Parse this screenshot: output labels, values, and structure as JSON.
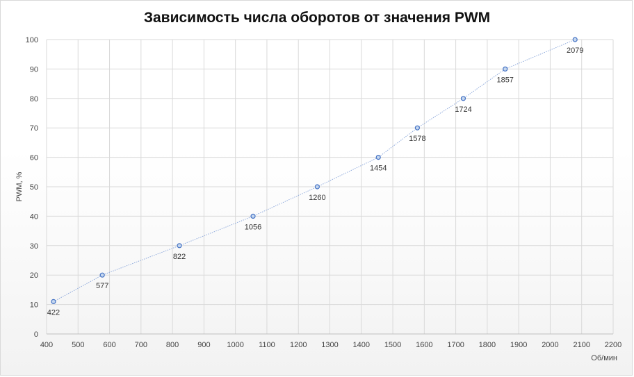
{
  "chart_data": {
    "type": "scatter",
    "title": "Зависимость числа оборотов от значения PWM",
    "xlabel": "Об/мин",
    "ylabel": "PWM, %",
    "xlim": [
      400,
      2200
    ],
    "ylim": [
      0,
      100
    ],
    "xticks": [
      400,
      500,
      600,
      700,
      800,
      900,
      1000,
      1100,
      1200,
      1300,
      1400,
      1500,
      1600,
      1700,
      1800,
      1900,
      2000,
      2100,
      2200
    ],
    "yticks": [
      0,
      10,
      20,
      30,
      40,
      50,
      60,
      70,
      80,
      90,
      100
    ],
    "grid": true,
    "series": [
      {
        "points": [
          {
            "x": 422,
            "y": 11,
            "label": "422"
          },
          {
            "x": 577,
            "y": 20,
            "label": "577"
          },
          {
            "x": 822,
            "y": 30,
            "label": "822"
          },
          {
            "x": 1056,
            "y": 40,
            "label": "1056"
          },
          {
            "x": 1260,
            "y": 50,
            "label": "1260"
          },
          {
            "x": 1454,
            "y": 60,
            "label": "1454"
          },
          {
            "x": 1578,
            "y": 70,
            "label": "1578"
          },
          {
            "x": 1724,
            "y": 80,
            "label": "1724"
          },
          {
            "x": 1857,
            "y": 90,
            "label": "1857"
          },
          {
            "x": 2079,
            "y": 100,
            "label": "2079"
          }
        ]
      }
    ],
    "colors": {
      "marker_fill": "#c5d7ef",
      "marker_stroke": "#4472c4",
      "line": "#8faadc",
      "grid": "#d9d9d9",
      "axis": "#bfbfbf"
    }
  }
}
